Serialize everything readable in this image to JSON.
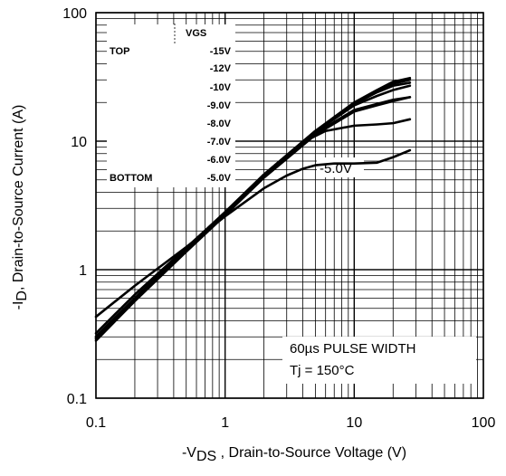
{
  "chart_data": {
    "type": "line",
    "xscale": "log",
    "yscale": "log",
    "xlim": [
      0.1,
      100
    ],
    "ylim": [
      0.1,
      100
    ],
    "grid": true,
    "xlabel_main": "-V",
    "xlabel_sub": "DS",
    "xlabel_rest": " , Drain-to-Source Voltage (V)",
    "ylabel_main": "-I",
    "ylabel_sub": "D",
    "ylabel_rest": ",  Drain-to-Source Current (A)",
    "x_ticks": [
      "0.1",
      "1",
      "10",
      "100"
    ],
    "y_ticks": [
      "0.1",
      "1",
      "10",
      "100"
    ],
    "legend": {
      "header": "VGS",
      "top_label": "TOP",
      "bottom_label": "BOTTOM",
      "entries": [
        "-15V",
        "-12V",
        "-10V",
        "-9.0V",
        "-8.0V",
        "-7.0V",
        "-6.0V",
        "-5.0V"
      ]
    },
    "annotation_line1": "60µs PULSE  WIDTH",
    "annotation_line2": "Tj = 150°C",
    "curve_label": "-5.0V",
    "series": [
      {
        "vgs": "-15V",
        "x": [
          0.1,
          0.2,
          0.5,
          1,
          2,
          5,
          10,
          15,
          20,
          27
        ],
        "y": [
          0.3,
          0.6,
          1.45,
          2.8,
          5.5,
          12,
          20,
          25,
          29,
          31
        ]
      },
      {
        "vgs": "-12V",
        "x": [
          0.1,
          0.2,
          0.5,
          1,
          2,
          5,
          10,
          15,
          20,
          27
        ],
        "y": [
          0.3,
          0.6,
          1.45,
          2.8,
          5.5,
          12,
          20,
          24.5,
          28,
          30
        ]
      },
      {
        "vgs": "-10V",
        "x": [
          0.1,
          0.2,
          0.5,
          1,
          2,
          5,
          10,
          15,
          20,
          27
        ],
        "y": [
          0.3,
          0.6,
          1.45,
          2.8,
          5.5,
          12,
          19.5,
          24,
          27,
          28.5
        ]
      },
      {
        "vgs": "-9.0V",
        "x": [
          0.1,
          0.2,
          0.5,
          1,
          2,
          5,
          10,
          15,
          20,
          27
        ],
        "y": [
          0.29,
          0.6,
          1.42,
          2.75,
          5.4,
          11.8,
          19,
          22.5,
          25,
          27
        ]
      },
      {
        "vgs": "-8.0V",
        "x": [
          0.1,
          0.2,
          0.5,
          1,
          2,
          5,
          10,
          15,
          20,
          27
        ],
        "y": [
          0.29,
          0.58,
          1.4,
          2.7,
          5.3,
          11.5,
          17.5,
          19.5,
          21,
          22
        ]
      },
      {
        "vgs": "-7.0V",
        "x": [
          0.1,
          0.2,
          0.5,
          1,
          2,
          4,
          6,
          10,
          15,
          20,
          27
        ],
        "y": [
          0.32,
          0.64,
          1.48,
          2.8,
          5.3,
          9.8,
          12.0,
          13.2,
          13.5,
          13.8,
          14.8
        ]
      },
      {
        "vgs": "-6.0V",
        "x": [
          0.1,
          0.2,
          0.5,
          1,
          2,
          5,
          10,
          15,
          20,
          27
        ],
        "y": [
          0.28,
          0.57,
          1.38,
          2.65,
          5.2,
          11.2,
          17,
          19,
          20.5,
          22
        ]
      },
      {
        "vgs": "-5.0V",
        "x": [
          0.1,
          0.2,
          0.5,
          1,
          2,
          3,
          4,
          5,
          7,
          10,
          15,
          20,
          27
        ],
        "y": [
          0.43,
          0.75,
          1.5,
          2.6,
          4.3,
          5.4,
          6.1,
          6.5,
          6.7,
          6.7,
          6.8,
          7.5,
          8.5
        ]
      }
    ]
  }
}
